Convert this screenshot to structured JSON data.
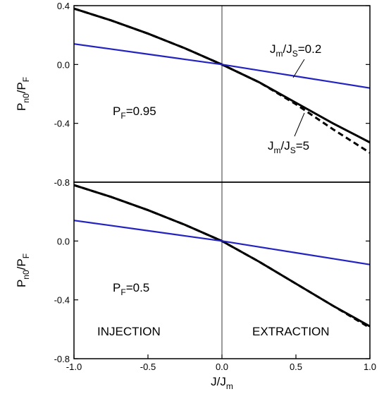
{
  "chart_data": [
    {
      "type": "line",
      "ylabel": [
        {
          "t": "P"
        },
        {
          "t": "n0",
          "sub": true
        },
        {
          "t": "/P"
        },
        {
          "t": "F",
          "sub": true
        }
      ],
      "xlim": [
        -1,
        1
      ],
      "ylim": [
        -0.8,
        0.4
      ],
      "yticks": [
        -0.8,
        -0.4,
        {
          "value": 0,
          "label": "0.0"
        },
        0.4
      ],
      "x": [
        -1,
        -0.75,
        -0.5,
        -0.25,
        0,
        0.25,
        0.5,
        0.75,
        1
      ],
      "series": [
        {
          "color": "#000000",
          "dash": false,
          "values": [
            0.38,
            0.3,
            0.21,
            0.11,
            0,
            -0.12,
            -0.26,
            -0.4,
            -0.53
          ]
        },
        {
          "color": "#000000",
          "dash": true,
          "values": [
            0.38,
            0.3,
            0.21,
            0.11,
            0,
            -0.12,
            -0.27,
            -0.44,
            -0.6
          ]
        },
        {
          "color": "#2323c2",
          "dash": false,
          "values": [
            0.14,
            0.105,
            0.07,
            0.035,
            0,
            -0.04,
            -0.08,
            -0.12,
            -0.16
          ]
        }
      ],
      "annotations": [
        [
          {
            "t": "J"
          },
          {
            "t": "m",
            "sub": true
          },
          {
            "t": "/J"
          },
          {
            "t": "S",
            "sub": true
          },
          {
            "t": "=0.2"
          }
        ],
        [
          {
            "t": "P"
          },
          {
            "t": "F",
            "sub": true
          },
          {
            "t": "=0.95"
          }
        ],
        [
          {
            "t": "J"
          },
          {
            "t": "m",
            "sub": true
          },
          {
            "t": "/J"
          },
          {
            "t": "S",
            "sub": true
          },
          {
            "t": "=5"
          }
        ]
      ]
    },
    {
      "type": "line",
      "ylabel": [
        {
          "t": "P"
        },
        {
          "t": "n0",
          "sub": true
        },
        {
          "t": "/P"
        },
        {
          "t": "F",
          "sub": true
        }
      ],
      "xlabel": [
        {
          "t": "J/J"
        },
        {
          "t": "m",
          "sub": true
        }
      ],
      "xlim": [
        -1,
        1
      ],
      "ylim": [
        -0.8,
        0.4
      ],
      "xticks": [
        {
          "value": -1,
          "label": "-1.0"
        },
        -0.5,
        {
          "value": 0,
          "label": "0.0"
        },
        0.5,
        {
          "value": 1,
          "label": "1.0"
        }
      ],
      "yticks": [
        -0.8,
        -0.4,
        {
          "value": 0,
          "label": "0.0"
        }
      ],
      "x": [
        -1,
        -0.75,
        -0.5,
        -0.25,
        0,
        0.25,
        0.5,
        0.75,
        1
      ],
      "series": [
        {
          "color": "#000000",
          "dash": false,
          "values": [
            0.38,
            0.3,
            0.21,
            0.11,
            0,
            -0.14,
            -0.29,
            -0.44,
            -0.58
          ]
        },
        {
          "color": "#000000",
          "dash": true,
          "values": [
            0.38,
            0.3,
            0.21,
            0.11,
            0,
            -0.14,
            -0.29,
            -0.44,
            -0.59
          ]
        },
        {
          "color": "#2323c2",
          "dash": false,
          "values": [
            0.14,
            0.105,
            0.07,
            0.035,
            0,
            -0.04,
            -0.08,
            -0.12,
            -0.16
          ]
        }
      ],
      "annotations": [
        [
          {
            "t": "P"
          },
          {
            "t": "F",
            "sub": true
          },
          {
            "t": "=0.5"
          }
        ],
        [
          {
            "t": "INJECTION"
          }
        ],
        [
          {
            "t": "EXTRACTION"
          }
        ]
      ]
    }
  ]
}
